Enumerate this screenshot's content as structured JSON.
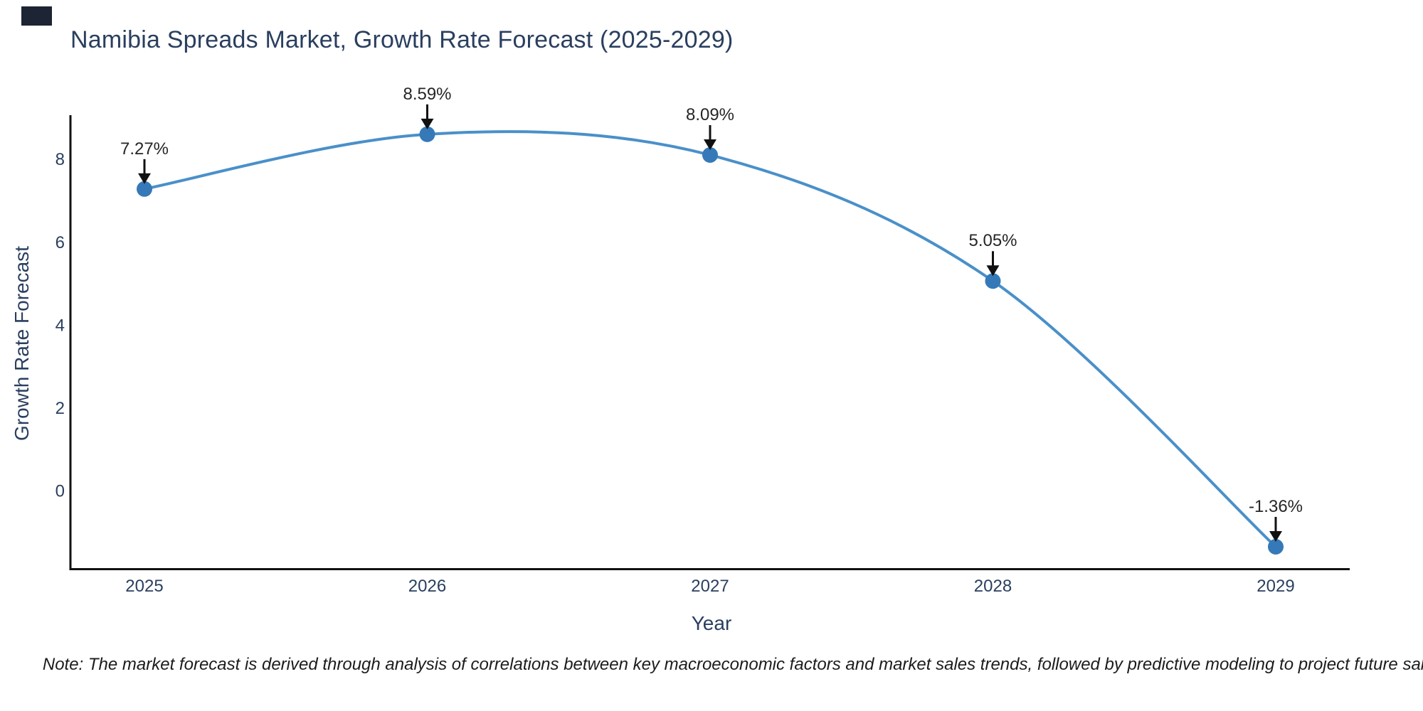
{
  "title": "Namibia Spreads Market, Growth Rate Forecast (2025-2029)",
  "footnote": "Note: The market forecast is derived through analysis of correlations between key macroeconomic factors and market sales trends, followed by predictive modeling to project future sales.",
  "chart_data": {
    "type": "line",
    "line_shape": "spline",
    "title": "Namibia Spreads Market, Growth Rate Forecast (2025-2029)",
    "xlabel": "Year",
    "ylabel": "Growth Rate Forecast",
    "categories": [
      2025,
      2026,
      2027,
      2028,
      2029
    ],
    "values": [
      7.27,
      8.59,
      8.09,
      5.05,
      -1.36
    ],
    "point_labels": [
      "7.27%",
      "8.59%",
      "8.09%",
      "5.05%",
      "-1.36%"
    ],
    "yticks": [
      0,
      2,
      4,
      6,
      8
    ],
    "ylim": [
      -1.9,
      9.05
    ],
    "grid": false,
    "legend_position": "none",
    "line_color": "#4a90c9",
    "marker_color": "#3579b8",
    "axis_line_color": "#111111",
    "annotation_arrow_color": "#111111",
    "tick_label_color": "#2a3f5f",
    "annotation_text_color": "#262626"
  }
}
